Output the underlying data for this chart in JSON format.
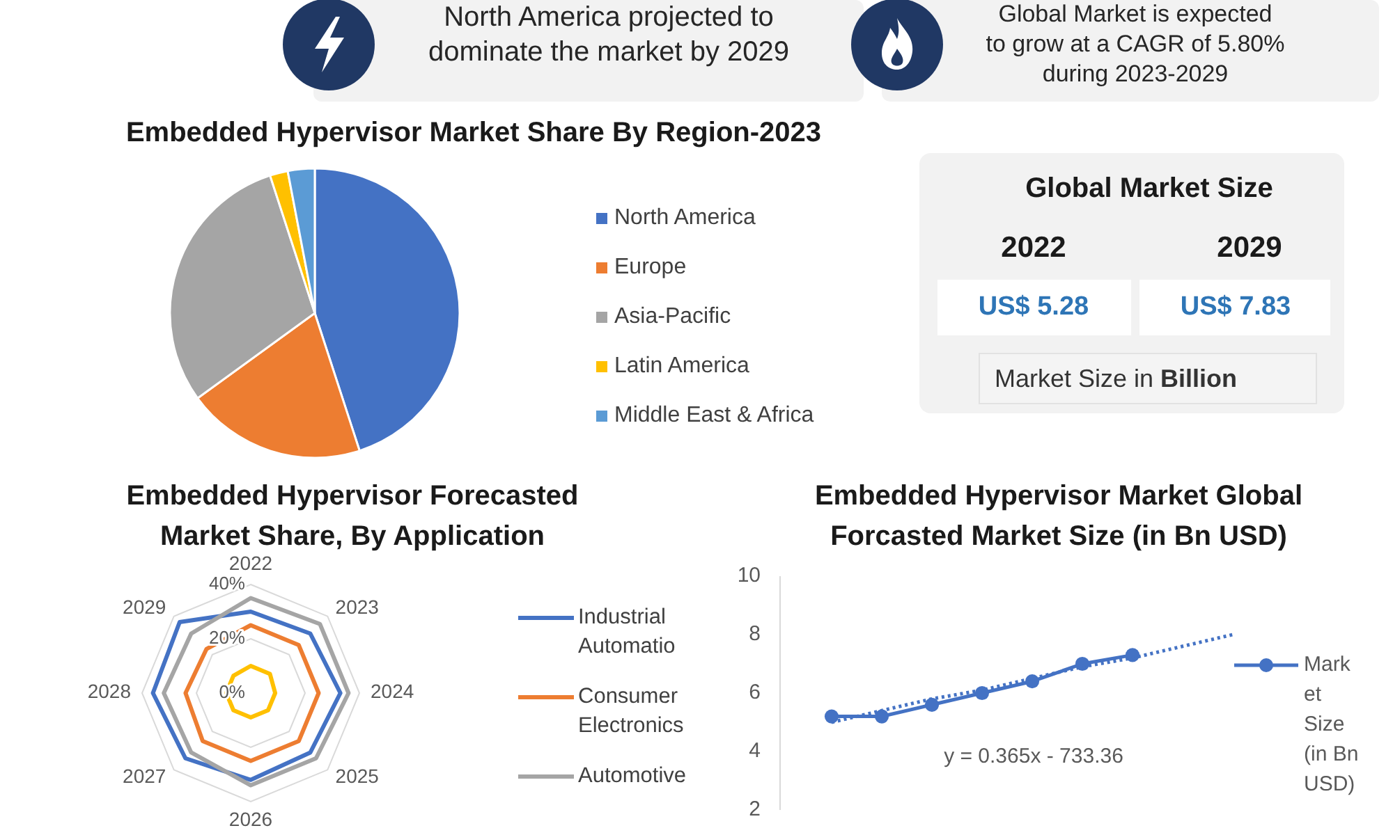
{
  "chart_data": [
    {
      "type": "other",
      "annotations": [
        "North America projected to dominate the market by 2029"
      ]
    },
    {
      "type": "other",
      "annotations": [
        "Global Market is expected to grow at a CAGR of 5.80% during 2023-2029"
      ]
    },
    {
      "type": "pie",
      "title": "Embedded Hypervisor Market Share By Region-2023",
      "categories": [
        "North America",
        "Europe",
        "Asia-Pacific",
        "Latin America",
        "Middle East & Africa"
      ],
      "values": [
        45,
        20,
        30,
        2,
        3
      ],
      "colors": [
        "#4472c4",
        "#ed7d31",
        "#a5a5a5",
        "#ffc000",
        "#5b9bd5"
      ],
      "legend": "right"
    },
    {
      "type": "other",
      "title": "Global Market Size",
      "annotations": [
        "2022",
        "2029",
        "US$ 5.28",
        "US$ 7.83",
        "Market Size in Billion"
      ]
    },
    {
      "type": "radar",
      "title": "Embedded Hypervisor Forecasted Market Share, By Application",
      "categories": [
        "2022",
        "2023",
        "2024",
        "2025",
        "2026",
        "2027",
        "2028",
        "2029"
      ],
      "ylim": [
        0,
        40
      ],
      "yticks": [
        {
          "value": 0,
          "label": "0%"
        },
        {
          "value": 20,
          "label": "20%"
        },
        {
          "value": 40,
          "label": "40%"
        }
      ],
      "grid": true,
      "legend": "right",
      "series": [
        {
          "name": "Industrial Automatio",
          "color": "#4472c4",
          "values": [
            30,
            31,
            33,
            31,
            32,
            34,
            36,
            37
          ]
        },
        {
          "name": "Consumer Electronics",
          "color": "#ed7d31",
          "values": [
            25,
            25,
            25,
            25,
            25,
            25,
            24,
            23
          ]
        },
        {
          "name": "Automotive",
          "color": "#a5a5a5",
          "values": [
            35,
            36,
            36,
            34,
            34,
            31,
            32,
            31
          ]
        },
        {
          "color": "#ffc000",
          "values": [
            10,
            10,
            9,
            9,
            9,
            9,
            9,
            9
          ]
        }
      ]
    },
    {
      "type": "line",
      "title": "Embedded Hypervisor Market Global Forcasted Market Size (in Bn USD)",
      "categories": [
        null,
        null,
        null,
        null,
        null,
        null,
        null,
        null,
        null
      ],
      "ylim": [
        2,
        10
      ],
      "yticks": [
        2,
        4,
        6,
        8,
        10
      ],
      "tick_labels": "y",
      "legend": "right",
      "series": [
        {
          "name": "Market Size (in Bn USD)",
          "color": "#4472c4",
          "marker": "circle",
          "values": [
            5.2,
            5.2,
            5.6,
            6.0,
            6.4,
            7.0,
            7.3,
            null,
            null
          ]
        },
        {
          "type": "line",
          "color": "#4472c4",
          "marker": "none",
          "line_style": "dotted",
          "values": [
            5.0,
            5.4,
            5.8,
            6.1,
            6.5,
            6.9,
            7.2,
            7.6,
            8.0
          ]
        }
      ],
      "annotations": [
        "y = 0.365x - 733.36"
      ]
    }
  ]
}
